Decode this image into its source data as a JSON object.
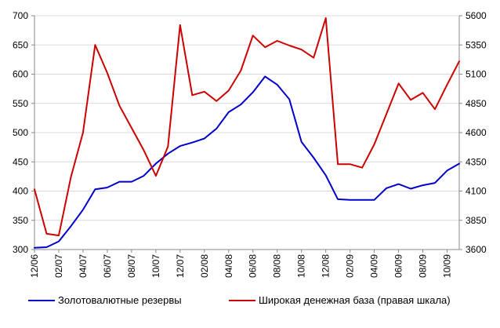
{
  "chart_data": {
    "type": "line",
    "x": [
      "12/06",
      "01/07",
      "02/07",
      "03/07",
      "04/07",
      "05/07",
      "06/07",
      "07/07",
      "08/07",
      "09/07",
      "10/07",
      "11/07",
      "12/07",
      "01/08",
      "02/08",
      "03/08",
      "04/08",
      "05/08",
      "06/08",
      "07/08",
      "08/08",
      "09/08",
      "10/08",
      "11/08",
      "12/08",
      "01/09",
      "02/09",
      "03/09",
      "04/09",
      "05/09",
      "06/09",
      "07/09",
      "08/09",
      "09/09",
      "10/09",
      "11/09"
    ],
    "x_tick_labels": [
      "12/06",
      "02/07",
      "04/07",
      "06/07",
      "08/07",
      "10/07",
      "12/07",
      "02/08",
      "04/08",
      "06/08",
      "08/08",
      "10/08",
      "12/08",
      "02/09",
      "04/09",
      "06/09",
      "08/09",
      "10/09"
    ],
    "y_left": {
      "min": 300,
      "max": 700,
      "ticks": [
        "300",
        "350",
        "400",
        "450",
        "500",
        "550",
        "600",
        "650",
        "700"
      ]
    },
    "y_right": {
      "min": 3600,
      "max": 5600,
      "ticks": [
        "3600",
        "3850",
        "4100",
        "4350",
        "4600",
        "4850",
        "5100",
        "5350",
        "5600"
      ]
    },
    "grid": true,
    "legend_position": "bottom",
    "series": [
      {
        "name": "Золотовалютные резервы",
        "axis": "left",
        "color": "#0000cc",
        "values": [
          303,
          304,
          314,
          340,
          368,
          403,
          406,
          416,
          416,
          426,
          447,
          464,
          477,
          483,
          490,
          507,
          535,
          548,
          569,
          596,
          582,
          557,
          484,
          457,
          427,
          386,
          385,
          385,
          385,
          405,
          412,
          404,
          410,
          414,
          435,
          447
        ]
      },
      {
        "name": "Широкая денежная база (правая шкала)",
        "axis": "right",
        "color": "#cc0000",
        "values": [
          4115,
          3735,
          3720,
          4220,
          4600,
          5350,
          5110,
          4830,
          4640,
          4450,
          4230,
          4480,
          5520,
          4920,
          4950,
          4870,
          4960,
          5130,
          5430,
          5330,
          5385,
          5345,
          5310,
          5240,
          5580,
          4330,
          4330,
          4300,
          4500,
          4760,
          5020,
          4880,
          4940,
          4800,
          5010,
          5210
        ]
      }
    ]
  }
}
